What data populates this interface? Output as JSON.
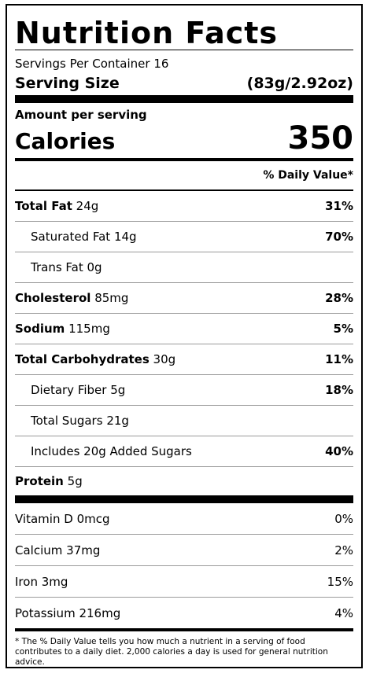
{
  "label": {
    "title": "Nutrition Facts",
    "servings_per_container": "Servings Per Container 16",
    "serving_size_label": "Serving Size",
    "serving_size_value": "(83g/2.92oz)",
    "amount_per_serving": "Amount per serving",
    "calories_label": "Calories",
    "calories_value": "350",
    "daily_value_header": "% Daily Value*"
  },
  "nutrients": [
    {
      "name": "Total Fat",
      "amount": "24g",
      "pct": "31%"
    },
    {
      "name": "Saturated Fat",
      "amount": "14g",
      "pct": "70%"
    },
    {
      "name": "Trans Fat",
      "amount": "0g",
      "pct": ""
    },
    {
      "name": "Cholesterol",
      "amount": "85mg",
      "pct": "28%"
    },
    {
      "name": "Sodium",
      "amount": "115mg",
      "pct": "5%"
    },
    {
      "name": "Total Carbohydrates",
      "amount": "30g",
      "pct": "11%"
    },
    {
      "name": "Dietary Fiber",
      "amount": "5g",
      "pct": "18%"
    },
    {
      "name": "Total Sugars",
      "amount": "21g",
      "pct": ""
    },
    {
      "name": "Includes 20g Added Sugars",
      "amount": "",
      "pct": "40%"
    },
    {
      "name": "Protein",
      "amount": "5g",
      "pct": ""
    }
  ],
  "vitamins": [
    {
      "name": "Vitamin D",
      "amount": "0mcg",
      "pct": "0%"
    },
    {
      "name": "Calcium",
      "amount": "37mg",
      "pct": "2%"
    },
    {
      "name": "Iron",
      "amount": "3mg",
      "pct": "15%"
    },
    {
      "name": "Potassium",
      "amount": "216mg",
      "pct": "4%"
    }
  ],
  "footnote": "* The % Daily Value tells you how much a nutrient in a serving of food contributes to a daily diet. 2,000 calories a day is used for general nutrition advice."
}
